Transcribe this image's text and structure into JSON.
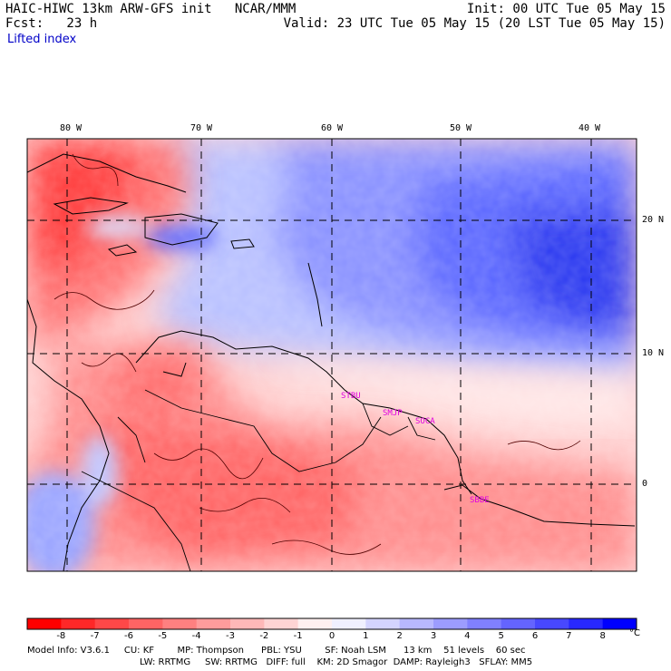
{
  "header": {
    "title_left": "HAIC-HIWC 13km ARW-GFS init   NCAR/MMM",
    "title_right": "Init: 00 UTC Tue 05 May 15",
    "fcst": "Fcst:   23 h",
    "valid": "Valid: 23 UTC Tue 05 May 15 (20 LST Tue 05 May 15)",
    "field": "Lifted index"
  },
  "lon_labels": [
    "80 W",
    "70 W",
    "60 W",
    "50 W",
    "40 W"
  ],
  "lat_labels": [
    "20 N",
    "10 N",
    "0"
  ],
  "stations": [
    "STBU",
    "SMJP",
    "SOCA",
    "SBBE"
  ],
  "colorbar": {
    "unit": "°C",
    "ticks": [
      "-8",
      "-7",
      "-6",
      "-5",
      "-4",
      "-3",
      "-2",
      "-1",
      "0",
      "1",
      "2",
      "3",
      "4",
      "5",
      "6",
      "7",
      "8"
    ],
    "colors": [
      "#ff0000",
      "#ff2828",
      "#ff4848",
      "#ff6464",
      "#ff8080",
      "#ff9c9c",
      "#ffb8b8",
      "#ffd4d4",
      "#fff0f0",
      "#f0f0ff",
      "#d4d4ff",
      "#b8b8ff",
      "#9c9cff",
      "#8080ff",
      "#6464ff",
      "#4848ff",
      "#2828ff",
      "#0000ff"
    ]
  },
  "model_info": {
    "line1": "Model Info: V3.6.1     CU: KF        MP: Thompson      PBL: YSU        SF: Noah LSM      13 km    51 levels    60 sec",
    "line2": "LW: RRTMG     SW: RRTMG   DIFF: full    KM: 2D Smagor  DAMP: Rayleigh3   SFLAY: MM5"
  }
}
